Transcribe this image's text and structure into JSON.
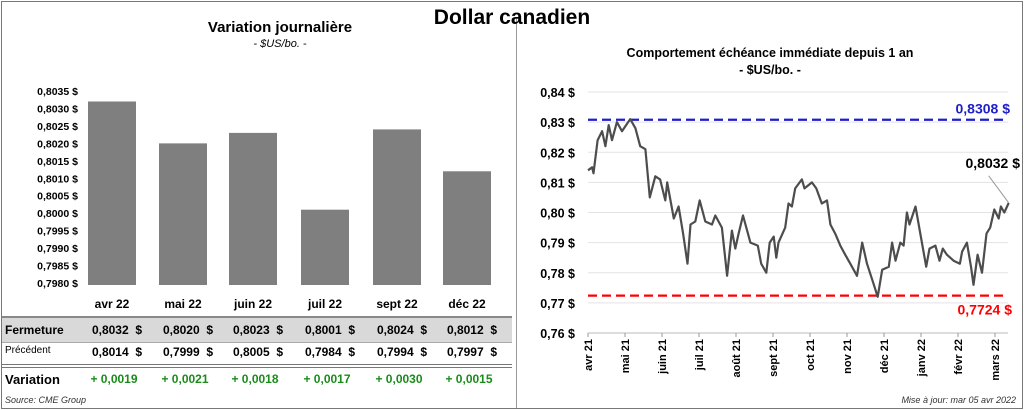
{
  "title": "Dollar canadien",
  "left_panel": {
    "title": "Variation  journalière",
    "subtitle": "- $US/bo. -",
    "table": {
      "columns": [
        "avr 22",
        "mai 22",
        "juin 22",
        "juil 22",
        "sept 22",
        "déc 22"
      ],
      "rows": [
        {
          "label": "Fermeture",
          "values": [
            "0,8032  $",
            "0,8020  $",
            "0,8023  $",
            "0,8001  $",
            "0,8024  $",
            "0,8012  $"
          ]
        },
        {
          "label": "Précédent",
          "values": [
            "0,8014  $",
            "0,7999  $",
            "0,8005  $",
            "0,7984  $",
            "0,7994  $",
            "0,7997  $"
          ]
        },
        {
          "label": "Variation",
          "values": [
            "+ 0,0019",
            "+ 0,0021",
            "+ 0,0018",
            "+ 0,0017",
            "+ 0,0030",
            "+ 0,0015"
          ]
        }
      ]
    },
    "source": "Source: CME Group"
  },
  "right_panel": {
    "title": "Comportement échéance immédiate depuis 1 an",
    "subtitle": "- $US/bo. -",
    "update": "Mise à jour: mar 05 avr 2022"
  },
  "colors": {
    "bar": "#7f7f7f",
    "line": "#4d4d4d",
    "high": "#1f1fc8",
    "low": "#ff0000",
    "positive": "#1a8c1a",
    "table_band": "#d9d9d9"
  },
  "chart_data": [
    {
      "type": "bar",
      "title": "Variation  journalière",
      "categories": [
        "avr 22",
        "mai 22",
        "juin 22",
        "juil 22",
        "sept 22",
        "déc 22"
      ],
      "values": [
        0.8032,
        0.802,
        0.8023,
        0.8001,
        0.8024,
        0.8012
      ],
      "ylim": [
        0.798,
        0.8035
      ],
      "yticks": [
        0.8035,
        0.803,
        0.8025,
        0.802,
        0.8015,
        0.801,
        0.8005,
        0.8,
        0.7995,
        0.799,
        0.7985,
        0.798
      ],
      "ytick_labels": [
        "0,8035 $",
        "0,8030 $",
        "0,8025 $",
        "0,8020 $",
        "0,8015 $",
        "0,8010 $",
        "0,8005 $",
        "0,8000 $",
        "0,7995 $",
        "0,7990 $",
        "0,7985 $",
        "0,7980 $"
      ]
    },
    {
      "type": "line",
      "title": "Comportement échéance immédiate depuis 1 an",
      "xlabel_unit": "months since avr 21",
      "x_tick_labels": [
        "avr 21",
        "mai 21",
        "juin 21",
        "juil 21",
        "août 21",
        "sept 21",
        "oct 21",
        "nov 21",
        "déc 21",
        "janv 22",
        "févr 22",
        "mars 22"
      ],
      "ylim": [
        0.76,
        0.84
      ],
      "yticks": [
        0.84,
        0.83,
        0.82,
        0.81,
        0.8,
        0.79,
        0.78,
        0.77,
        0.76
      ],
      "ytick_labels": [
        "0,84 $",
        "0,83 $",
        "0,82 $",
        "0,81 $",
        "0,80 $",
        "0,79 $",
        "0,78 $",
        "0,77 $",
        "0,76 $"
      ],
      "grid": true,
      "high": {
        "value": 0.8308,
        "label": "0,8308 $"
      },
      "low": {
        "value": 0.7724,
        "label": "0,7724 $"
      },
      "last": {
        "value": 0.8032,
        "label": "0,8032 $"
      },
      "points": [
        [
          0,
          0.814
        ],
        [
          0.11,
          0.815
        ],
        [
          0.15,
          0.813
        ],
        [
          0.26,
          0.824
        ],
        [
          0.38,
          0.827
        ],
        [
          0.47,
          0.822
        ],
        [
          0.56,
          0.829
        ],
        [
          0.65,
          0.824
        ],
        [
          0.78,
          0.83
        ],
        [
          0.92,
          0.827
        ],
        [
          1.14,
          0.831
        ],
        [
          1.28,
          0.828
        ],
        [
          1.41,
          0.822
        ],
        [
          1.55,
          0.821
        ],
        [
          1.67,
          0.805
        ],
        [
          1.82,
          0.812
        ],
        [
          1.95,
          0.811
        ],
        [
          2.09,
          0.804
        ],
        [
          2.14,
          0.81
        ],
        [
          2.32,
          0.798
        ],
        [
          2.45,
          0.802
        ],
        [
          2.57,
          0.793
        ],
        [
          2.69,
          0.783
        ],
        [
          2.77,
          0.796
        ],
        [
          2.9,
          0.797
        ],
        [
          3.02,
          0.804
        ],
        [
          3.17,
          0.797
        ],
        [
          3.35,
          0.796
        ],
        [
          3.44,
          0.799
        ],
        [
          3.62,
          0.795
        ],
        [
          3.76,
          0.779
        ],
        [
          3.89,
          0.794
        ],
        [
          3.98,
          0.788
        ],
        [
          4.07,
          0.793
        ],
        [
          4.19,
          0.799
        ],
        [
          4.39,
          0.79
        ],
        [
          4.59,
          0.789
        ],
        [
          4.68,
          0.783
        ],
        [
          4.82,
          0.78
        ],
        [
          4.91,
          0.79
        ],
        [
          5.02,
          0.792
        ],
        [
          5.09,
          0.785
        ],
        [
          5.15,
          0.79
        ],
        [
          5.33,
          0.795
        ],
        [
          5.42,
          0.803
        ],
        [
          5.51,
          0.802
        ],
        [
          5.6,
          0.808
        ],
        [
          5.78,
          0.811
        ],
        [
          5.85,
          0.808
        ],
        [
          6.05,
          0.81
        ],
        [
          6.17,
          0.808
        ],
        [
          6.32,
          0.803
        ],
        [
          6.46,
          0.804
        ],
        [
          6.55,
          0.796
        ],
        [
          6.68,
          0.793
        ],
        [
          6.82,
          0.789
        ],
        [
          6.95,
          0.786
        ],
        [
          7.09,
          0.783
        ],
        [
          7.27,
          0.779
        ],
        [
          7.41,
          0.79
        ],
        [
          7.54,
          0.783
        ],
        [
          7.7,
          0.777
        ],
        [
          7.83,
          0.772
        ],
        [
          7.95,
          0.781
        ],
        [
          8.13,
          0.782
        ],
        [
          8.22,
          0.79
        ],
        [
          8.31,
          0.784
        ],
        [
          8.44,
          0.79
        ],
        [
          8.53,
          0.789
        ],
        [
          8.62,
          0.8
        ],
        [
          8.69,
          0.796
        ],
        [
          8.85,
          0.802
        ],
        [
          8.98,
          0.793
        ],
        [
          9.14,
          0.782
        ],
        [
          9.23,
          0.788
        ],
        [
          9.39,
          0.789
        ],
        [
          9.5,
          0.784
        ],
        [
          9.59,
          0.788
        ],
        [
          9.7,
          0.786
        ],
        [
          9.88,
          0.784
        ],
        [
          10.05,
          0.783
        ],
        [
          10.11,
          0.787
        ],
        [
          10.24,
          0.79
        ],
        [
          10.35,
          0.782
        ],
        [
          10.42,
          0.776
        ],
        [
          10.53,
          0.786
        ],
        [
          10.65,
          0.78
        ],
        [
          10.77,
          0.793
        ],
        [
          10.87,
          0.795
        ],
        [
          10.98,
          0.801
        ],
        [
          11.1,
          0.798
        ],
        [
          11.16,
          0.802
        ],
        [
          11.25,
          0.8
        ],
        [
          11.37,
          0.8032
        ]
      ]
    }
  ]
}
